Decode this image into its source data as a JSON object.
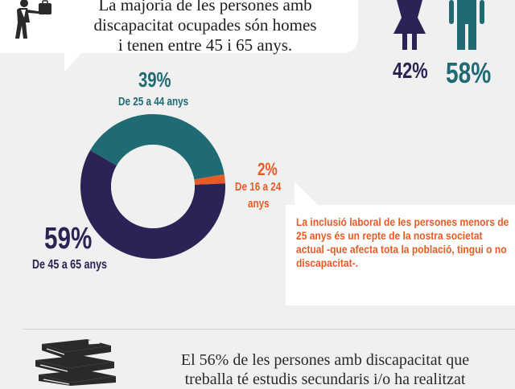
{
  "top_note": {
    "line1": "La majoria de les persones amb",
    "line2": "discapacitat ocupades són homes",
    "line3": "i tenen entre 45 i 65 anys."
  },
  "gender": {
    "female_pct": "42%",
    "male_pct": "58%",
    "female_color": "#2b2255",
    "male_color": "#1f6a73"
  },
  "chart_data": {
    "type": "pie",
    "donut": true,
    "slices": [
      {
        "label": "De 25 a 44 anys",
        "pct_label": "39%",
        "value": 39,
        "color": "#1f6a73"
      },
      {
        "label": "De 16 a 24 anys",
        "pct_label": "2%",
        "value": 2,
        "color": "#e85a26"
      },
      {
        "label": "De 45 a 65 anys",
        "pct_label": "59%",
        "value": 59,
        "color": "#2b2255"
      }
    ]
  },
  "labels": {
    "s39_pct": "39%",
    "s39_range": "De 25 a 44 anys",
    "s2_pct": "2%",
    "s2_range_line1": "De 16 a 24",
    "s2_range_line2": "anys",
    "s59_pct": "59%",
    "s59_range": "De 45 a 65 anys"
  },
  "right_note": "La inclusió laboral de les persones menors de 25 anys és un repte de la nostra societat actual -que afecta tota la població, tingui o no discapacitat-.",
  "bottom_note": {
    "line1": "El 56% de les persones amb discapacitat que",
    "line2": "treballa té estudis secundaris i/o ha realitzat"
  },
  "icons": {
    "worker": "businessman-walking-icon",
    "female": "female-icon",
    "male": "male-icon",
    "books": "books-stack-icon"
  }
}
